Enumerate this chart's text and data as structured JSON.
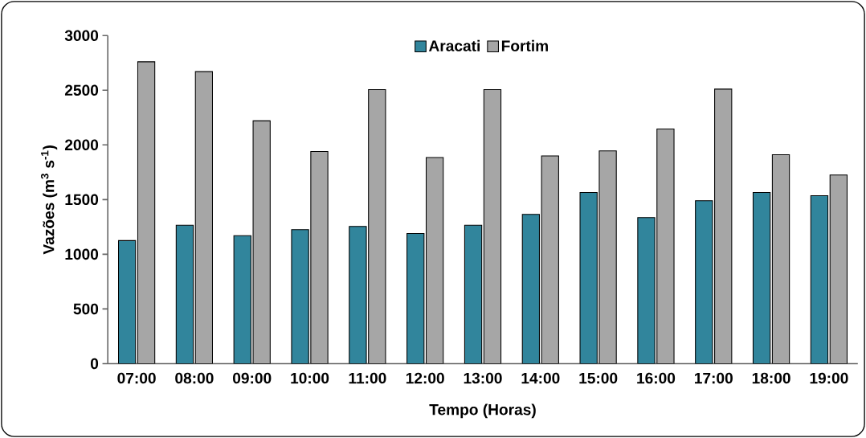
{
  "chart_data": {
    "type": "bar",
    "xlabel": "Tempo (Horas)",
    "ylabel": "Vazões (m$^{3}$ s$^{-1}$)",
    "categories": [
      "07:00",
      "08:00",
      "09:00",
      "10:00",
      "11:00",
      "12:00",
      "13:00",
      "14:00",
      "15:00",
      "16:00",
      "17:00",
      "18:00",
      "19:00"
    ],
    "series": [
      {
        "name": "Aracati",
        "color": "#31859c",
        "values": [
          1125,
          1265,
          1170,
          1225,
          1255,
          1190,
          1265,
          1365,
          1565,
          1335,
          1490,
          1565,
          1535
        ]
      },
      {
        "name": "Fortim",
        "color": "#a6a6a6",
        "values": [
          2760,
          2670,
          2220,
          1940,
          2505,
          1885,
          2505,
          1900,
          1945,
          2145,
          2510,
          1910,
          1725
        ]
      }
    ],
    "ylim": [
      0,
      3000
    ],
    "yticks": [
      0,
      500,
      1000,
      1500,
      2000,
      2500,
      3000
    ],
    "grid": false,
    "legend": "top"
  }
}
